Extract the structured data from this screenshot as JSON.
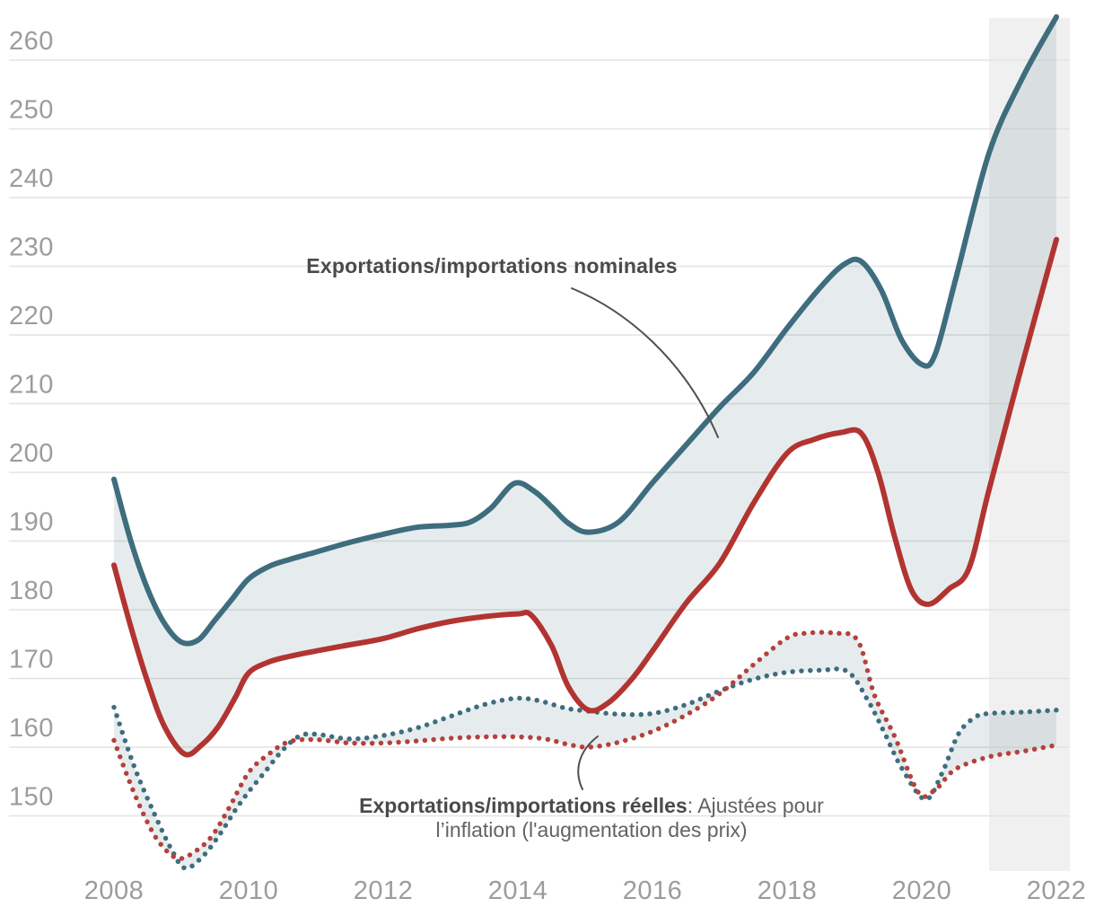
{
  "annotations": {
    "nominal": {
      "text": "Exportations/importations nominales"
    },
    "real": {
      "bold": "Exportations/importations réelles",
      "rest": ": Ajustées pour",
      "line2": "l’inflation (l'augmentation des prix)"
    }
  },
  "colors": {
    "nominal_blue": "#3E6D7E",
    "nominal_red": "#B23431",
    "real_blue": "#3E6D7E",
    "real_red": "#B5413C",
    "area_fill": "#3E6D7E",
    "forecast_band": "#F0F0F0",
    "grid": "#E3E3E3",
    "tick_label": "#9C9C9C",
    "annotation_text": "#4A4A4A",
    "annotation_secondary": "#636363",
    "connector": "#4F4F4F"
  },
  "chart_data": {
    "type": "line",
    "title": "",
    "xlabel": "",
    "ylabel": "",
    "grid": true,
    "legend_position": "annotations-inline",
    "x_ticks": [
      2008,
      2010,
      2012,
      2014,
      2016,
      2018,
      2020,
      2022
    ],
    "y_ticks": [
      260,
      250,
      240,
      230,
      220,
      210,
      200,
      190,
      180,
      170,
      160,
      150
    ],
    "x_domain": [
      2008,
      2022.2
    ],
    "y_domain": [
      140,
      267
    ],
    "forecast_band": {
      "from": 2021,
      "to": 2022.2
    },
    "fill_opacity": 0.13,
    "bands": [
      {
        "upper": "nominal-blue",
        "lower": "nominal-red"
      },
      {
        "upper": "real-blue",
        "lower": "real-red"
      }
    ],
    "series": [
      {
        "id": "nominal-blue",
        "label": "Exportations/importations nominales",
        "style": "solid",
        "color": "#3E6D7E",
        "points": [
          [
            2008,
            199
          ],
          [
            2008.25,
            190
          ],
          [
            2008.5,
            183
          ],
          [
            2008.75,
            178
          ],
          [
            2009,
            175.3
          ],
          [
            2009.25,
            175.6
          ],
          [
            2009.5,
            178.5
          ],
          [
            2009.75,
            181.5
          ],
          [
            2010,
            184.5
          ],
          [
            2010.3,
            186.3
          ],
          [
            2010.6,
            187.3
          ],
          [
            2011,
            188.4
          ],
          [
            2011.5,
            189.8
          ],
          [
            2012,
            191
          ],
          [
            2012.5,
            192
          ],
          [
            2013,
            192.3
          ],
          [
            2013.3,
            192.8
          ],
          [
            2013.6,
            194.8
          ],
          [
            2013.95,
            198.4
          ],
          [
            2014.25,
            197.2
          ],
          [
            2014.5,
            195
          ],
          [
            2014.75,
            192.6
          ],
          [
            2015.05,
            191.3
          ],
          [
            2015.5,
            192.8
          ],
          [
            2016,
            198.5
          ],
          [
            2016.5,
            204
          ],
          [
            2017,
            209.5
          ],
          [
            2017.5,
            214.5
          ],
          [
            2018,
            221
          ],
          [
            2018.5,
            227
          ],
          [
            2018.85,
            230.3
          ],
          [
            2019.1,
            230.7
          ],
          [
            2019.4,
            226.5
          ],
          [
            2019.7,
            219.3
          ],
          [
            2020,
            215.7
          ],
          [
            2020.2,
            217.2
          ],
          [
            2020.5,
            228
          ],
          [
            2021,
            246.5
          ],
          [
            2021.5,
            257.5
          ],
          [
            2022,
            266.3
          ]
        ]
      },
      {
        "id": "nominal-red",
        "label": "Exportations/importations nominales",
        "style": "solid",
        "color": "#B23431",
        "points": [
          [
            2008,
            186.5
          ],
          [
            2008.25,
            177.5
          ],
          [
            2008.5,
            169.5
          ],
          [
            2008.75,
            163
          ],
          [
            2009.05,
            159
          ],
          [
            2009.3,
            160.3
          ],
          [
            2009.55,
            163
          ],
          [
            2009.8,
            167.2
          ],
          [
            2010,
            170.8
          ],
          [
            2010.3,
            172.4
          ],
          [
            2010.6,
            173.2
          ],
          [
            2011,
            174
          ],
          [
            2011.5,
            174.9
          ],
          [
            2012,
            175.8
          ],
          [
            2012.5,
            177.2
          ],
          [
            2013,
            178.3
          ],
          [
            2013.5,
            179
          ],
          [
            2014,
            179.4
          ],
          [
            2014.2,
            179.2
          ],
          [
            2014.5,
            174.8
          ],
          [
            2014.75,
            168.8
          ],
          [
            2015.05,
            165.4
          ],
          [
            2015.35,
            166.5
          ],
          [
            2015.7,
            170
          ],
          [
            2016,
            174
          ],
          [
            2016.5,
            181
          ],
          [
            2017,
            186.8
          ],
          [
            2017.5,
            195.5
          ],
          [
            2018,
            202.8
          ],
          [
            2018.4,
            204.8
          ],
          [
            2018.8,
            205.8
          ],
          [
            2019.1,
            205.7
          ],
          [
            2019.35,
            200
          ],
          [
            2019.6,
            190.5
          ],
          [
            2019.85,
            182.8
          ],
          [
            2020.1,
            180.8
          ],
          [
            2020.4,
            183
          ],
          [
            2020.7,
            186
          ],
          [
            2021,
            197.5
          ],
          [
            2021.5,
            216
          ],
          [
            2022,
            233.9
          ]
        ]
      },
      {
        "id": "real-blue",
        "label": "Exportations/importations réelles",
        "style": "dotted",
        "color": "#3E6D7E",
        "points": [
          [
            2008,
            165.8
          ],
          [
            2008.3,
            157.2
          ],
          [
            2008.6,
            150.3
          ],
          [
            2008.85,
            145.2
          ],
          [
            2009.05,
            142.4
          ],
          [
            2009.3,
            143.9
          ],
          [
            2009.55,
            147
          ],
          [
            2009.8,
            150.8
          ],
          [
            2010,
            153.5
          ],
          [
            2010.25,
            156.5
          ],
          [
            2010.5,
            159.5
          ],
          [
            2010.75,
            161.6
          ],
          [
            2011,
            161.9
          ],
          [
            2011.5,
            161.2
          ],
          [
            2012,
            161.7
          ],
          [
            2012.5,
            162.8
          ],
          [
            2013,
            164.5
          ],
          [
            2013.5,
            166.2
          ],
          [
            2013.95,
            167.1
          ],
          [
            2014.3,
            166.8
          ],
          [
            2014.7,
            165.7
          ],
          [
            2015,
            165.3
          ],
          [
            2015.5,
            164.8
          ],
          [
            2016,
            164.9
          ],
          [
            2016.5,
            166.2
          ],
          [
            2017,
            168.2
          ],
          [
            2017.5,
            169.9
          ],
          [
            2018,
            170.9
          ],
          [
            2018.5,
            171.2
          ],
          [
            2018.9,
            171
          ],
          [
            2019.2,
            166.8
          ],
          [
            2019.45,
            162
          ],
          [
            2019.7,
            157
          ],
          [
            2020.05,
            152.4
          ],
          [
            2020.3,
            156.2
          ],
          [
            2020.55,
            162
          ],
          [
            2020.8,
            164.4
          ],
          [
            2021,
            164.9
          ],
          [
            2021.5,
            165.1
          ],
          [
            2022,
            165.4
          ]
        ]
      },
      {
        "id": "real-red",
        "label": "Exportations/importations réelles",
        "style": "dotted",
        "color": "#B5413C",
        "points": [
          [
            2008,
            161
          ],
          [
            2008.25,
            154.5
          ],
          [
            2008.5,
            149
          ],
          [
            2008.7,
            145.8
          ],
          [
            2008.95,
            143.8
          ],
          [
            2009.2,
            144.8
          ],
          [
            2009.45,
            147
          ],
          [
            2009.7,
            151
          ],
          [
            2010,
            156.3
          ],
          [
            2010.3,
            159
          ],
          [
            2010.6,
            160.8
          ],
          [
            2011,
            161.1
          ],
          [
            2011.5,
            160.6
          ],
          [
            2012,
            160.6
          ],
          [
            2012.5,
            160.9
          ],
          [
            2013,
            161.3
          ],
          [
            2013.5,
            161.5
          ],
          [
            2014,
            161.5
          ],
          [
            2014.4,
            161.2
          ],
          [
            2014.7,
            160.5
          ],
          [
            2015,
            160
          ],
          [
            2015.3,
            160.3
          ],
          [
            2015.6,
            161
          ],
          [
            2016,
            162.3
          ],
          [
            2016.5,
            164.7
          ],
          [
            2017,
            167.8
          ],
          [
            2017.5,
            172
          ],
          [
            2018,
            175.9
          ],
          [
            2018.3,
            176.6
          ],
          [
            2018.7,
            176.6
          ],
          [
            2019.05,
            175.5
          ],
          [
            2019.3,
            167.5
          ],
          [
            2019.6,
            161.5
          ],
          [
            2019.95,
            153.4
          ],
          [
            2020.2,
            153.8
          ],
          [
            2020.5,
            156.8
          ],
          [
            2021,
            158.6
          ],
          [
            2021.5,
            159.4
          ],
          [
            2022,
            160.3
          ]
        ]
      }
    ]
  }
}
